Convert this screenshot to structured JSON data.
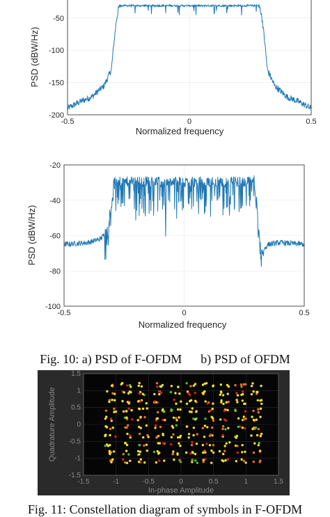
{
  "chart_data": [
    {
      "type": "line",
      "title": "",
      "xlabel": "Normalized frequency",
      "ylabel": "PSD (dBW/Hz)",
      "xlim": [
        -0.5,
        0.5
      ],
      "ylim": [
        -200,
        -20
      ],
      "xticks": [
        -0.5,
        0,
        0.5
      ],
      "xtick_labels": [
        "-0.5",
        "0",
        "0.5"
      ],
      "yticks": [
        -200,
        -150,
        -100,
        -50
      ],
      "ytick_labels": [
        "-200",
        "-150",
        "-100",
        "-50"
      ],
      "grid": true,
      "color": "#1f77b4",
      "series": [
        {
          "x": [
            -0.5,
            -0.45,
            -0.4,
            -0.35,
            -0.32,
            -0.31,
            -0.3,
            -0.29,
            -0.28,
            -0.2,
            -0.1,
            0,
            0.1,
            0.2,
            0.28,
            0.29,
            0.3,
            0.31,
            0.32,
            0.35,
            0.4,
            0.45,
            0.5
          ],
          "y": [
            -190,
            -180,
            -172,
            -155,
            -130,
            -90,
            -55,
            -34,
            -31,
            -31,
            -31,
            -31,
            -31,
            -31,
            -31,
            -34,
            -55,
            -90,
            -130,
            -155,
            -172,
            -180,
            -190
          ]
        }
      ]
    },
    {
      "type": "line",
      "title": "",
      "xlabel": "Normalized frequency",
      "ylabel": "PSD (dBW/Hz)",
      "xlim": [
        -0.5,
        0.5
      ],
      "ylim": [
        -100,
        -20
      ],
      "xticks": [
        -0.5,
        0,
        0.5
      ],
      "xtick_labels": [
        "-0.5",
        "0",
        "0.5"
      ],
      "yticks": [
        -100,
        -80,
        -60,
        -40,
        -20
      ],
      "ytick_labels": [
        "-100",
        "-80",
        "-60",
        "-40",
        "-20"
      ],
      "grid": true,
      "color": "#1f77b4",
      "series": [
        {
          "x": [
            -0.5,
            -0.4,
            -0.35,
            -0.32,
            -0.3,
            -0.29,
            -0.2,
            -0.1,
            0,
            0.1,
            0.2,
            0.29,
            0.3,
            0.31,
            0.32,
            0.35,
            0.4,
            0.5
          ],
          "y": [
            -65,
            -64,
            -62,
            -58,
            -40,
            -29,
            -29,
            -29,
            -29,
            -29,
            -29,
            -29,
            -40,
            -58,
            -70,
            -65,
            -64,
            -65
          ]
        }
      ]
    },
    {
      "type": "scatter",
      "title": "",
      "xlabel": "In-phase Amplitude",
      "ylabel": "Quadrature Amplitude",
      "xlim": [
        -1.5,
        1.5
      ],
      "ylim": [
        -1.5,
        1.5
      ],
      "xticks": [
        -1.5,
        -1,
        -0.5,
        0,
        0.5,
        1,
        1.5
      ],
      "xtick_labels": [
        "-1.5",
        "-1",
        "-0.5",
        "0",
        "0.5",
        "1",
        "1.5"
      ],
      "yticks": [
        -1.5,
        -1,
        -0.5,
        0,
        0.5,
        1,
        1.5
      ],
      "ytick_labels": [
        "-1.5",
        "-1",
        "-0.5",
        "0",
        "0.5",
        "1",
        "1.5"
      ],
      "background": "#050505",
      "constellation_levels": [
        -1.0833,
        -0.8333,
        -0.5833,
        -0.3333,
        -0.0833,
        0.1667,
        0.4167,
        0.6667,
        0.9167,
        1.1667
      ],
      "series": [
        {
          "name": "",
          "color": "#f2e12b"
        },
        {
          "name": "",
          "color": "#e8761c"
        },
        {
          "name": "",
          "color": "#d62020"
        },
        {
          "name": "",
          "color": "#3cc43c"
        }
      ]
    }
  ],
  "captions": {
    "fig10": "Fig. 10: a) PSD of F-OFDM      b) PSD of OFDM",
    "fig11": "Fig. 11: Constellation diagram of symbols in F-OFDM"
  }
}
